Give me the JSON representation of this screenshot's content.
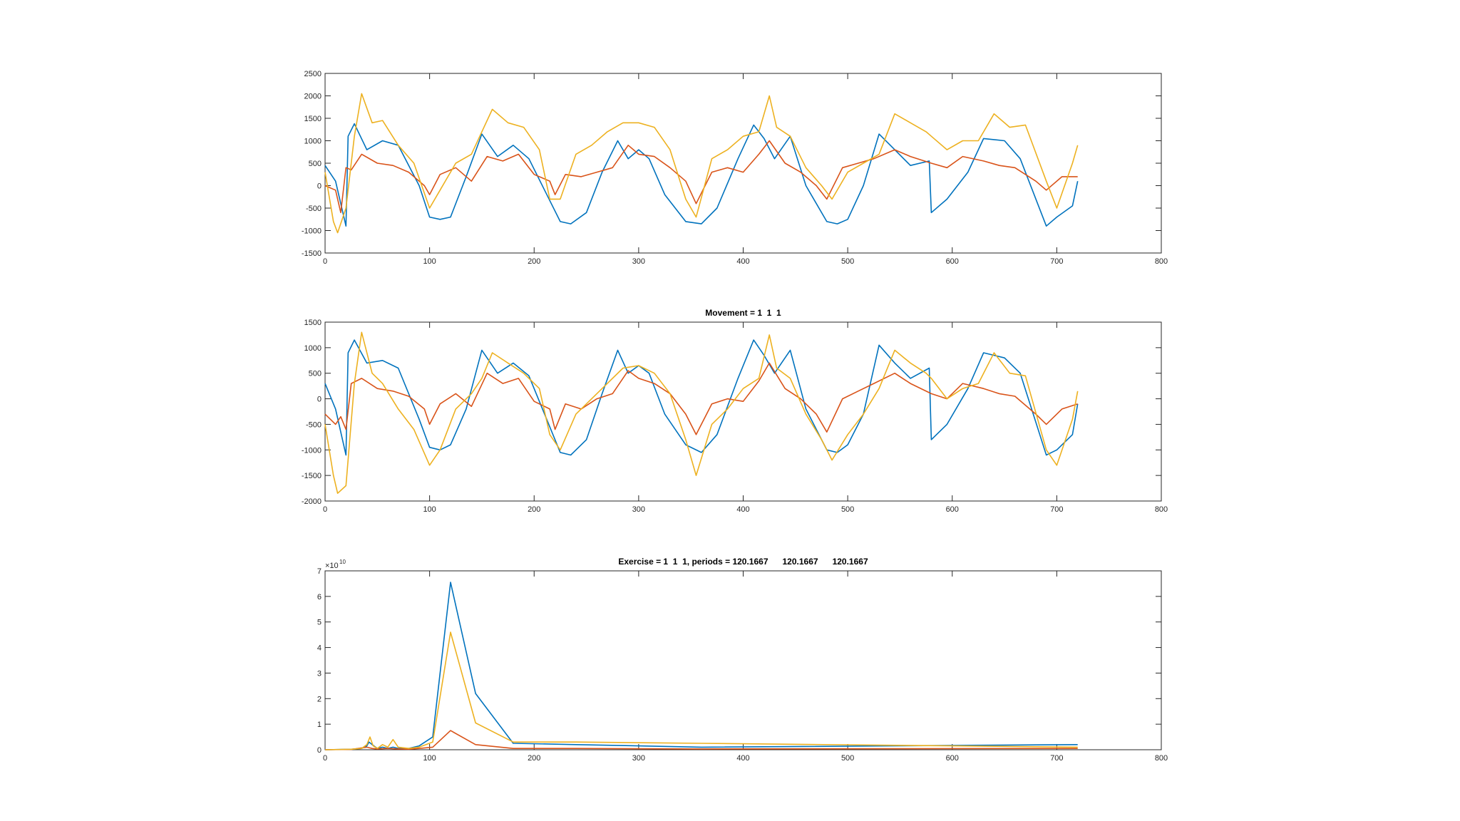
{
  "chart_data": [
    {
      "type": "line",
      "title": "",
      "xlabel": "",
      "ylabel": "",
      "xlim": [
        0,
        800
      ],
      "ylim": [
        -1500,
        2500
      ],
      "x_ticks": [
        0,
        100,
        200,
        300,
        400,
        500,
        600,
        700,
        800
      ],
      "y_ticks": [
        -1500,
        -1000,
        -500,
        0,
        500,
        1000,
        1500,
        2000,
        2500
      ],
      "grid": false,
      "legend": "none",
      "series": [
        {
          "color": "#0072BD",
          "x": [
            0,
            10,
            20,
            22,
            28,
            40,
            55,
            70,
            90,
            100,
            110,
            120,
            135,
            150,
            165,
            180,
            195,
            210,
            225,
            235,
            250,
            265,
            280,
            290,
            300,
            310,
            325,
            345,
            360,
            375,
            395,
            410,
            420,
            430,
            445,
            460,
            480,
            490,
            500,
            515,
            530,
            545,
            560,
            578,
            580,
            595,
            615,
            630,
            650,
            665,
            690,
            700,
            715,
            720
          ],
          "values": [
            450,
            100,
            -900,
            1100,
            1380,
            800,
            1000,
            900,
            0,
            -700,
            -750,
            -700,
            200,
            1150,
            650,
            900,
            600,
            -100,
            -800,
            -850,
            -600,
            300,
            1000,
            600,
            800,
            600,
            -200,
            -800,
            -850,
            -500,
            600,
            1350,
            1050,
            600,
            1100,
            0,
            -800,
            -850,
            -750,
            0,
            1150,
            800,
            450,
            550,
            -600,
            -300,
            300,
            1050,
            1000,
            600,
            -900,
            -700,
            -450,
            100
          ]
        },
        {
          "color": "#D95319",
          "x": [
            0,
            10,
            15,
            20,
            25,
            35,
            50,
            65,
            80,
            95,
            100,
            110,
            125,
            140,
            155,
            170,
            185,
            200,
            215,
            220,
            230,
            245,
            260,
            275,
            290,
            300,
            315,
            330,
            345,
            355,
            370,
            385,
            400,
            415,
            425,
            440,
            455,
            470,
            480,
            495,
            510,
            525,
            545,
            560,
            580,
            595,
            610,
            630,
            645,
            660,
            680,
            690,
            705,
            720
          ],
          "values": [
            0,
            -100,
            -600,
            400,
            350,
            700,
            500,
            450,
            300,
            0,
            -200,
            250,
            400,
            100,
            650,
            550,
            700,
            250,
            100,
            -200,
            250,
            200,
            300,
            400,
            900,
            700,
            650,
            400,
            100,
            -400,
            300,
            400,
            300,
            700,
            1000,
            500,
            300,
            0,
            -300,
            400,
            500,
            600,
            800,
            650,
            500,
            400,
            650,
            550,
            450,
            400,
            100,
            -100,
            200,
            200
          ]
        },
        {
          "color": "#EDB120",
          "x": [
            0,
            8,
            12,
            20,
            28,
            35,
            45,
            55,
            70,
            85,
            100,
            110,
            125,
            140,
            150,
            160,
            175,
            190,
            205,
            215,
            225,
            240,
            255,
            270,
            285,
            300,
            315,
            330,
            345,
            355,
            370,
            385,
            400,
            415,
            425,
            432,
            445,
            460,
            475,
            485,
            500,
            515,
            530,
            545,
            560,
            575,
            580,
            595,
            610,
            625,
            640,
            655,
            670,
            690,
            700,
            715,
            720
          ],
          "values": [
            300,
            -800,
            -1050,
            -500,
            1100,
            2050,
            1400,
            1450,
            900,
            500,
            -500,
            -100,
            500,
            700,
            1200,
            1700,
            1400,
            1300,
            800,
            -300,
            -300,
            700,
            900,
            1200,
            1400,
            1400,
            1300,
            800,
            -300,
            -700,
            600,
            800,
            1100,
            1200,
            2000,
            1300,
            1100,
            400,
            0,
            -300,
            300,
            500,
            700,
            1600,
            1400,
            1200,
            1100,
            800,
            1000,
            1000,
            1600,
            1300,
            1350,
            100,
            -500,
            500,
            900
          ]
        }
      ]
    },
    {
      "type": "line",
      "title": "Movement = 1  1  1",
      "xlabel": "",
      "ylabel": "",
      "xlim": [
        0,
        800
      ],
      "ylim": [
        -2000,
        1500
      ],
      "x_ticks": [
        0,
        100,
        200,
        300,
        400,
        500,
        600,
        700,
        800
      ],
      "y_ticks": [
        -2000,
        -1500,
        -1000,
        -500,
        0,
        500,
        1000,
        1500
      ],
      "grid": false,
      "legend": "none",
      "series": [
        {
          "color": "#0072BD",
          "x": [
            0,
            10,
            20,
            22,
            28,
            40,
            55,
            70,
            90,
            100,
            110,
            120,
            135,
            150,
            165,
            180,
            195,
            210,
            225,
            235,
            250,
            265,
            280,
            290,
            300,
            310,
            325,
            345,
            360,
            375,
            395,
            410,
            420,
            430,
            445,
            460,
            480,
            490,
            500,
            515,
            530,
            545,
            560,
            578,
            580,
            595,
            615,
            630,
            650,
            665,
            690,
            700,
            715,
            720
          ],
          "values": [
            300,
            -200,
            -1100,
            900,
            1150,
            700,
            750,
            600,
            -400,
            -950,
            -1000,
            -900,
            -200,
            950,
            500,
            700,
            450,
            -300,
            -1050,
            -1100,
            -800,
            100,
            950,
            500,
            650,
            500,
            -300,
            -900,
            -1050,
            -700,
            400,
            1150,
            850,
            500,
            950,
            -200,
            -1000,
            -1050,
            -900,
            -300,
            1050,
            700,
            400,
            600,
            -800,
            -500,
            200,
            900,
            800,
            500,
            -1100,
            -1000,
            -700,
            -100
          ]
        },
        {
          "color": "#D95319",
          "x": [
            0,
            10,
            15,
            20,
            25,
            35,
            50,
            65,
            80,
            95,
            100,
            110,
            125,
            140,
            155,
            170,
            185,
            200,
            215,
            220,
            230,
            245,
            260,
            275,
            290,
            300,
            315,
            330,
            345,
            355,
            370,
            385,
            400,
            415,
            425,
            440,
            455,
            470,
            480,
            495,
            510,
            525,
            545,
            560,
            580,
            595,
            610,
            630,
            645,
            660,
            680,
            690,
            705,
            720
          ],
          "values": [
            -300,
            -500,
            -350,
            -600,
            300,
            400,
            200,
            150,
            50,
            -200,
            -500,
            -100,
            100,
            -150,
            500,
            300,
            400,
            -50,
            -200,
            -600,
            -100,
            -200,
            0,
            100,
            550,
            400,
            300,
            100,
            -300,
            -700,
            -100,
            0,
            -50,
            350,
            700,
            200,
            0,
            -300,
            -650,
            0,
            150,
            300,
            500,
            300,
            100,
            0,
            300,
            200,
            100,
            50,
            -300,
            -500,
            -200,
            -100
          ]
        },
        {
          "color": "#EDB120",
          "x": [
            0,
            8,
            12,
            20,
            28,
            35,
            45,
            55,
            70,
            85,
            100,
            110,
            125,
            140,
            150,
            160,
            175,
            190,
            205,
            215,
            225,
            240,
            255,
            270,
            285,
            300,
            315,
            330,
            345,
            355,
            370,
            385,
            400,
            415,
            425,
            432,
            445,
            460,
            475,
            485,
            500,
            515,
            530,
            545,
            560,
            575,
            580,
            595,
            610,
            625,
            640,
            655,
            670,
            690,
            700,
            715,
            720
          ],
          "values": [
            -500,
            -1500,
            -1850,
            -1700,
            300,
            1300,
            500,
            300,
            -200,
            -600,
            -1300,
            -1000,
            -200,
            100,
            400,
            900,
            700,
            500,
            200,
            -700,
            -1000,
            -300,
            0,
            300,
            600,
            650,
            500,
            100,
            -800,
            -1500,
            -500,
            -200,
            200,
            400,
            1250,
            600,
            400,
            -300,
            -800,
            -1200,
            -700,
            -300,
            200,
            950,
            700,
            500,
            400,
            0,
            200,
            300,
            900,
            500,
            450,
            -1000,
            -1300,
            -400,
            150
          ]
        }
      ]
    },
    {
      "type": "line",
      "title": "Exercise = 1  1  1, periods = 120.1667      120.1667      120.1667",
      "xlabel": "",
      "ylabel": "",
      "exponent_label": "×10",
      "exponent_power": "10",
      "y_scale_factor": 10000000000,
      "xlim": [
        0,
        800
      ],
      "ylim": [
        0,
        7
      ],
      "x_ticks": [
        0,
        100,
        200,
        300,
        400,
        500,
        600,
        700,
        800
      ],
      "y_ticks": [
        0,
        1,
        2,
        3,
        4,
        5,
        6,
        7
      ],
      "grid": false,
      "legend": "none",
      "series": [
        {
          "color": "#0072BD",
          "x": [
            0,
            25,
            35,
            40,
            42,
            45,
            50,
            55,
            60,
            65,
            70,
            80,
            90,
            103,
            120,
            144,
            180,
            240,
            360,
            720
          ],
          "values": [
            0,
            0.02,
            0.05,
            0.15,
            0.3,
            0.2,
            0.05,
            0.1,
            0.05,
            0.1,
            0.05,
            0.05,
            0.15,
            0.5,
            6.55,
            2.2,
            0.25,
            0.2,
            0.1,
            0.2
          ]
        },
        {
          "color": "#D95319",
          "x": [
            0,
            25,
            40,
            45,
            50,
            60,
            70,
            80,
            90,
            103,
            120,
            144,
            180,
            240,
            360,
            720
          ],
          "values": [
            0,
            0.01,
            0.1,
            0.05,
            0.03,
            0.05,
            0.03,
            0.02,
            0.05,
            0.1,
            0.75,
            0.2,
            0.05,
            0.05,
            0.03,
            0.05
          ]
        },
        {
          "color": "#EDB120",
          "x": [
            0,
            25,
            35,
            40,
            43,
            46,
            50,
            55,
            60,
            65,
            70,
            80,
            90,
            103,
            120,
            144,
            180,
            240,
            360,
            720
          ],
          "values": [
            0,
            0.02,
            0.05,
            0.2,
            0.5,
            0.15,
            0.05,
            0.2,
            0.1,
            0.4,
            0.1,
            0.05,
            0.1,
            0.3,
            4.6,
            1.05,
            0.3,
            0.3,
            0.25,
            0.1
          ]
        }
      ]
    }
  ]
}
